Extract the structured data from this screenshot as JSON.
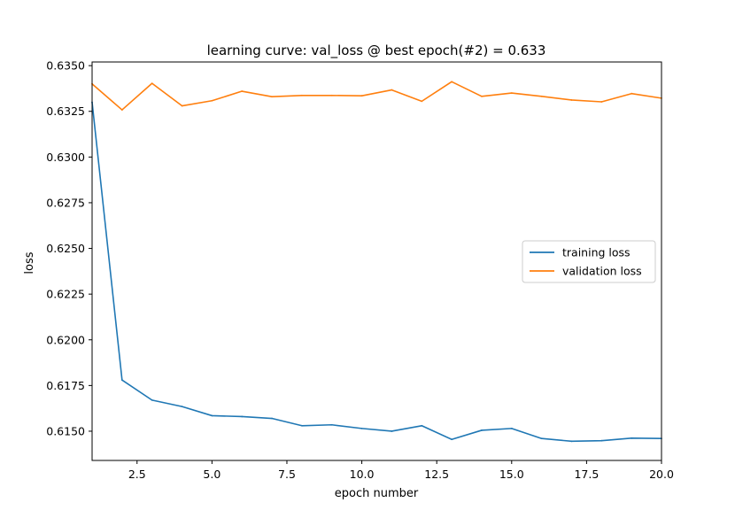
{
  "chart_data": {
    "type": "line",
    "title": "learning curve: val_loss @ best epoch(#2) = 0.633",
    "xlabel": "epoch number",
    "ylabel": "loss",
    "xlim": [
      1,
      20
    ],
    "ylim": [
      0.6134,
      0.6352
    ],
    "x_ticks": [
      2.5,
      5.0,
      7.5,
      10.0,
      12.5,
      15.0,
      17.5,
      20.0
    ],
    "x_tick_labels": [
      "2.5",
      "5.0",
      "7.5",
      "10.0",
      "12.5",
      "15.0",
      "17.5",
      "20.0"
    ],
    "y_ticks": [
      0.615,
      0.6175,
      0.62,
      0.6225,
      0.625,
      0.6275,
      0.63,
      0.6325,
      0.635
    ],
    "y_tick_labels": [
      "0.6150",
      "0.6175",
      "0.6200",
      "0.6225",
      "0.6250",
      "0.6275",
      "0.6300",
      "0.6325",
      "0.6350"
    ],
    "grid": false,
    "legend_position": "center-right",
    "x": [
      1,
      2,
      3,
      4,
      5,
      6,
      7,
      8,
      9,
      10,
      11,
      12,
      13,
      14,
      15,
      16,
      17,
      18,
      19,
      20
    ],
    "series": [
      {
        "name": "training loss",
        "color": "#1f77b4",
        "values": [
          0.633,
          0.6178,
          0.6167,
          0.61635,
          0.61585,
          0.6158,
          0.6157,
          0.6153,
          0.61535,
          0.61515,
          0.615,
          0.6153,
          0.61455,
          0.61505,
          0.61515,
          0.6146,
          0.61445,
          0.61448,
          0.61462,
          0.6146
        ]
      },
      {
        "name": "validation loss",
        "color": "#ff7f0e",
        "values": [
          0.634,
          0.63258,
          0.63403,
          0.6328,
          0.63308,
          0.6336,
          0.6333,
          0.63337,
          0.63337,
          0.63335,
          0.63367,
          0.63305,
          0.63412,
          0.63332,
          0.6335,
          0.63332,
          0.63312,
          0.63302,
          0.63347,
          0.63322
        ]
      }
    ]
  }
}
